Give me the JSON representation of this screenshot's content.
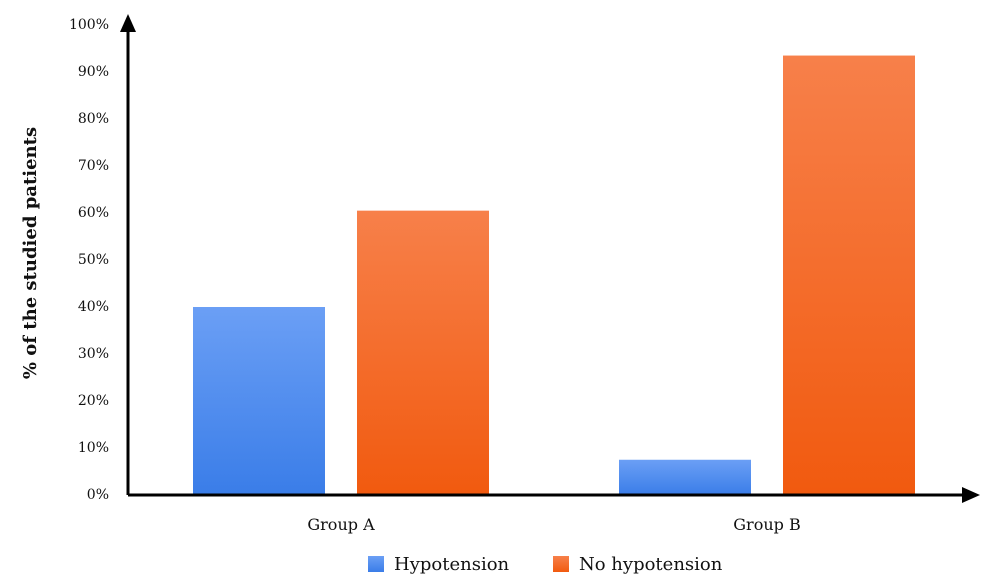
{
  "chart_data": {
    "type": "bar",
    "title": "",
    "xlabel": "",
    "ylabel": "% of the studied patients",
    "categories": [
      "Group A",
      "Group B"
    ],
    "series": [
      {
        "name": "Hypotension",
        "values": [
          40,
          7.5
        ],
        "color": "#3a7de8",
        "color_light": "#6b9ff5"
      },
      {
        "name": "No hypotension",
        "values": [
          60.5,
          93.5
        ],
        "color": "#f15a0f",
        "color_light": "#f7804a"
      }
    ],
    "ylim": [
      0,
      100
    ],
    "yticks": [
      "0%",
      "10%",
      "20%",
      "30%",
      "40%",
      "50%",
      "60%",
      "70%",
      "80%",
      "90%",
      "100%"
    ],
    "grid": false,
    "legend_position": "bottom"
  }
}
